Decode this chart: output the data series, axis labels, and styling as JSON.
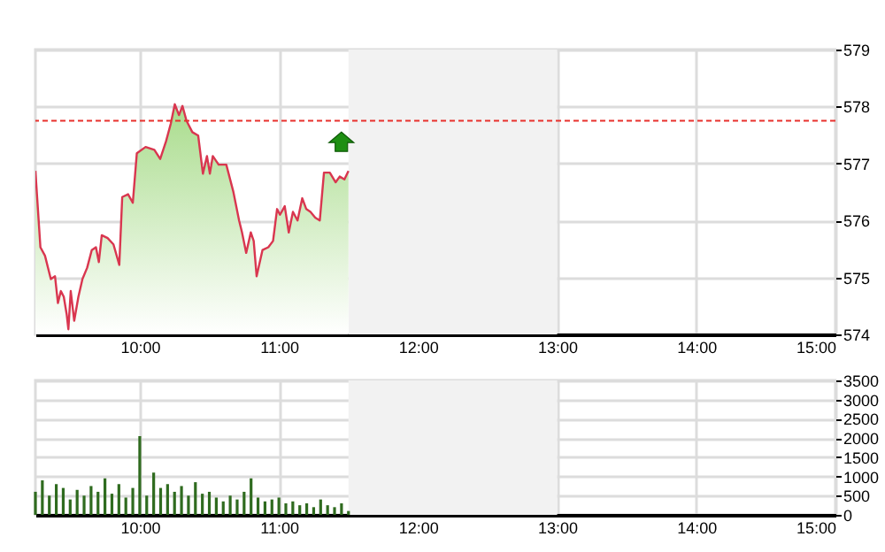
{
  "chart_data": [
    {
      "type": "area",
      "x": [
        9.25,
        9.286,
        9.319,
        9.361,
        9.391,
        9.412,
        9.433,
        9.454,
        9.475,
        9.487,
        9.504,
        9.529,
        9.559,
        9.588,
        9.622,
        9.655,
        9.685,
        9.706,
        9.727,
        9.769,
        9.811,
        9.853,
        9.874,
        9.916,
        9.95,
        9.979,
        10.042,
        10.105,
        10.147,
        10.189,
        10.223,
        10.252,
        10.282,
        10.307,
        10.336,
        10.378,
        10.42,
        10.454,
        10.483,
        10.504,
        10.525,
        10.567,
        10.622,
        10.672,
        10.714,
        10.735,
        10.765,
        10.798,
        10.819,
        10.84,
        10.882,
        10.924,
        10.958,
        10.987,
        11.008,
        11.042,
        11.071,
        11.101,
        11.134,
        11.168,
        11.197,
        11.227,
        11.261,
        11.294,
        11.324,
        11.366,
        11.408,
        11.437,
        11.471,
        11.5
      ],
      "series": [
        {
          "color": "#d9364f",
          "values": [
            576.87,
            575.53,
            575.38,
            574.97,
            575.02,
            574.55,
            574.76,
            574.66,
            574.35,
            574.09,
            574.76,
            574.24,
            574.66,
            574.97,
            575.17,
            575.48,
            575.53,
            575.27,
            575.74,
            575.69,
            575.58,
            575.22,
            576.41,
            576.46,
            576.31,
            577.18,
            577.29,
            577.24,
            577.08,
            577.39,
            577.7,
            578.04,
            577.85,
            578.01,
            577.75,
            577.55,
            577.49,
            576.82,
            577.13,
            576.82,
            577.13,
            576.98,
            576.98,
            576.51,
            576.0,
            575.79,
            575.43,
            575.79,
            575.64,
            575.02,
            575.48,
            575.53,
            575.64,
            576.2,
            576.1,
            576.25,
            575.79,
            576.15,
            576.0,
            576.39,
            576.2,
            576.15,
            576.05,
            576.0,
            576.84,
            576.84,
            576.67,
            576.77,
            576.72,
            576.87
          ]
        }
      ],
      "xlim": [
        9.25,
        15
      ],
      "xticks": [
        {
          "value": 10,
          "label": "10:00"
        },
        {
          "value": 11,
          "label": "11:00"
        },
        {
          "value": 12,
          "label": "12:00"
        },
        {
          "value": 13,
          "label": "13:00"
        },
        {
          "value": 14,
          "label": "14:00"
        },
        {
          "value": 15,
          "label": "15:00"
        }
      ],
      "ylim": [
        574,
        579
      ],
      "yticks": [
        574,
        575,
        576,
        577,
        578,
        579
      ],
      "grid": true,
      "ref_lines": [
        {
          "axis": "y",
          "value": 577.75,
          "color": "#e8302c",
          "line_style": "dashed"
        }
      ],
      "bands": [
        {
          "axis": "x",
          "from": 11.5,
          "to": 13,
          "color": "#f2f2f2"
        }
      ]
    },
    {
      "type": "bar",
      "x": [
        9.25,
        9.3,
        9.35,
        9.4,
        9.45,
        9.5,
        9.55,
        9.6,
        9.65,
        9.7,
        9.75,
        9.8,
        9.85,
        9.9,
        9.95,
        10.0,
        10.05,
        10.1,
        10.15,
        10.2,
        10.25,
        10.3,
        10.35,
        10.4,
        10.45,
        10.5,
        10.55,
        10.6,
        10.65,
        10.7,
        10.75,
        10.8,
        10.85,
        10.9,
        10.95,
        11.0,
        11.05,
        11.1,
        11.15,
        11.2,
        11.25,
        11.3,
        11.35,
        11.4,
        11.45,
        11.5
      ],
      "series": [
        {
          "color": "#2f6b1f",
          "values": [
            600,
            900,
            500,
            800,
            700,
            400,
            650,
            500,
            750,
            600,
            950,
            550,
            800,
            450,
            700,
            2050,
            500,
            1100,
            700,
            800,
            600,
            750,
            500,
            850,
            550,
            600,
            450,
            350,
            500,
            400,
            600,
            950,
            450,
            350,
            400,
            450,
            300,
            350,
            250,
            300,
            200,
            400,
            250,
            200,
            300,
            100
          ]
        }
      ],
      "xlim": [
        9.25,
        15
      ],
      "xticks": [
        {
          "value": 10,
          "label": "10:00"
        },
        {
          "value": 11,
          "label": "11:00"
        },
        {
          "value": 12,
          "label": "12:00"
        },
        {
          "value": 13,
          "label": "13:00"
        },
        {
          "value": 14,
          "label": "14:00"
        },
        {
          "value": 15,
          "label": "15:00"
        }
      ],
      "ylim": [
        0,
        3500
      ],
      "yticks": [
        0,
        500,
        1000,
        1500,
        2000,
        2500,
        3000,
        3500
      ],
      "grid": true,
      "bands": [
        {
          "axis": "x",
          "from": 11.5,
          "to": 13,
          "color": "#f2f2f2"
        }
      ]
    }
  ]
}
